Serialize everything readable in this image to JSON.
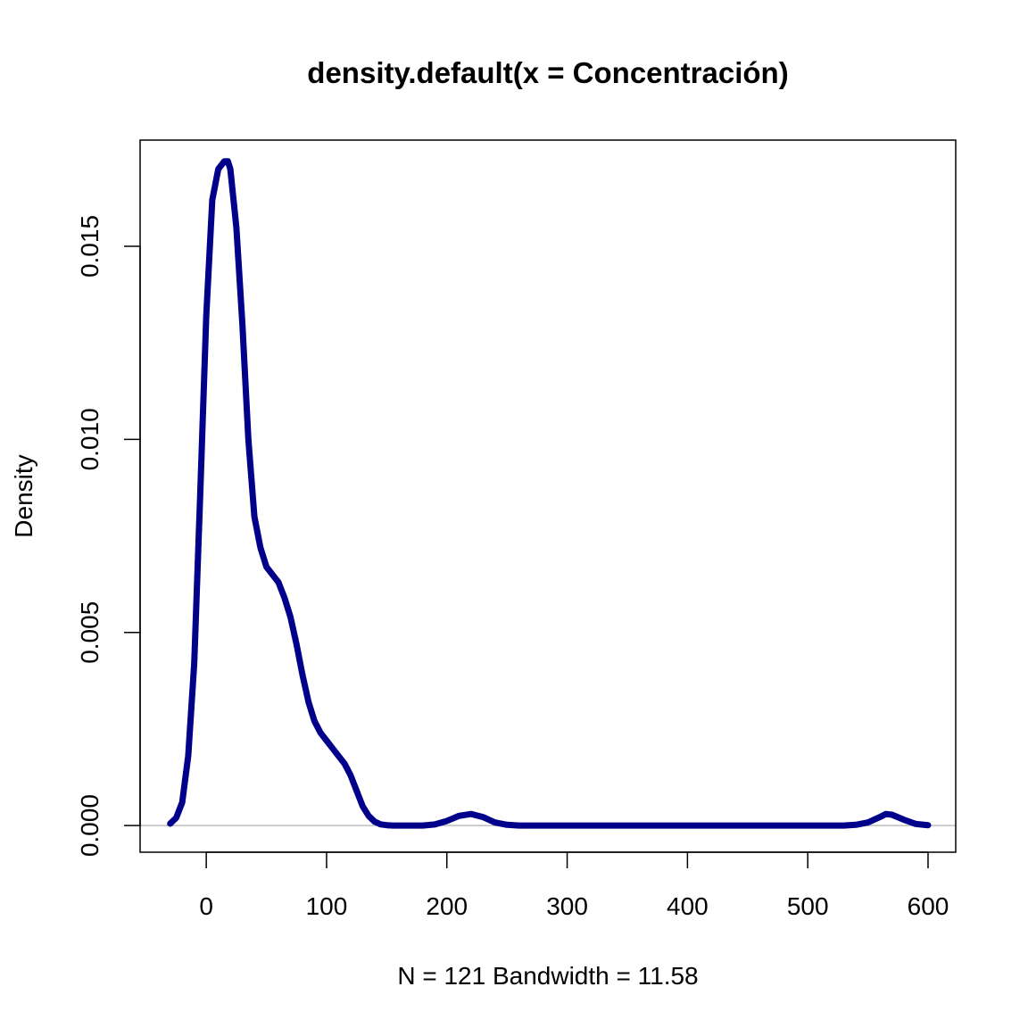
{
  "chart_data": {
    "type": "line",
    "title": "density.default(x = Concentración)",
    "xlabel": "N = 121   Bandwidth = 11.58",
    "ylabel": "Density",
    "xlim": [
      -55,
      623
    ],
    "ylim": [
      -0.00069,
      0.01775
    ],
    "x_ticks": [
      0,
      100,
      200,
      300,
      400,
      500,
      600
    ],
    "x_tick_labels": [
      "0",
      "100",
      "200",
      "300",
      "400",
      "500",
      "600"
    ],
    "y_ticks": [
      0,
      0.005,
      0.01,
      0.015
    ],
    "y_tick_labels": [
      "0.000",
      "0.005",
      "0.010",
      "0.015"
    ],
    "baseline": 0,
    "grid": false,
    "legend": "none",
    "colors": {
      "series": "#00008B",
      "baseline": "#BEBEBE",
      "frame": "#000000"
    },
    "series": [
      {
        "x": [
          -30,
          -25,
          -20,
          -15,
          -10,
          -5,
          0,
          5,
          10,
          15,
          18,
          20,
          25,
          30,
          35,
          40,
          45,
          50,
          55,
          60,
          65,
          70,
          75,
          80,
          85,
          90,
          95,
          100,
          105,
          110,
          115,
          120,
          125,
          130,
          135,
          140,
          145,
          150,
          155,
          160,
          170,
          180,
          190,
          200,
          210,
          220,
          230,
          240,
          250,
          260,
          300,
          400,
          500,
          530,
          540,
          550,
          560,
          565,
          570,
          580,
          590,
          600
        ],
        "y": [
          5e-05,
          0.0002,
          0.0006,
          0.0018,
          0.0042,
          0.0086,
          0.0132,
          0.0162,
          0.017,
          0.0172,
          0.0172,
          0.017,
          0.0155,
          0.013,
          0.01,
          0.008,
          0.0072,
          0.0067,
          0.0065,
          0.0063,
          0.0059,
          0.0054,
          0.0047,
          0.0039,
          0.0032,
          0.0027,
          0.0024,
          0.0022,
          0.002,
          0.0018,
          0.0016,
          0.0013,
          0.0009,
          0.0005,
          0.00025,
          0.0001,
          3e-05,
          1e-05,
          0.0,
          0.0,
          0.0,
          0.0,
          3e-05,
          0.00012,
          0.00025,
          0.0003,
          0.00022,
          8e-05,
          2e-05,
          0.0,
          0.0,
          0.0,
          0.0,
          0.0,
          2e-05,
          8e-05,
          0.00022,
          0.0003,
          0.00028,
          0.00015,
          4e-05,
          1e-05
        ]
      }
    ]
  }
}
